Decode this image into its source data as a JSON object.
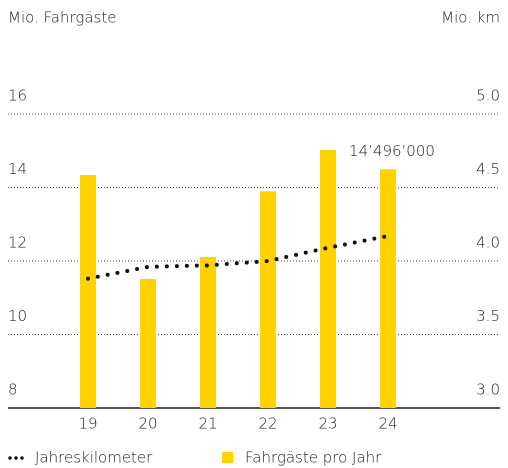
{
  "chart_data": {
    "type": "bar",
    "y_label": "Mio. Fahrgäste",
    "y2_label": "Mio. km",
    "categories": [
      "19",
      "20",
      "21",
      "22",
      "23",
      "24"
    ],
    "series": [
      {
        "name": "Fahrgäste pro Jahr",
        "type": "bar",
        "color": "#ffd200",
        "axis": "y",
        "values": [
          14.34,
          11.51,
          12.11,
          13.9,
          15.02,
          14.496
        ],
        "value_labels": [
          null,
          null,
          null,
          null,
          null,
          "14’496’000"
        ]
      },
      {
        "name": "Jahreskilometer",
        "type": "line",
        "color": "#111111",
        "axis": "y2",
        "values": [
          3.88,
          3.96,
          3.97,
          4.0,
          4.09,
          4.17
        ]
      }
    ],
    "ylim": [
      8,
      16
    ],
    "yticks": [
      8,
      10,
      12,
      14,
      16
    ],
    "y2lim": [
      3.0,
      5.0
    ],
    "y2ticks": [
      {
        "value": 3.0,
        "label": "3.0"
      },
      {
        "value": 3.5,
        "label": "3.5"
      },
      {
        "value": 4.0,
        "label": "4.0"
      },
      {
        "value": 4.5,
        "label": "4.5"
      },
      {
        "value": 5.0,
        "label": "5.0"
      }
    ],
    "grid": true
  }
}
